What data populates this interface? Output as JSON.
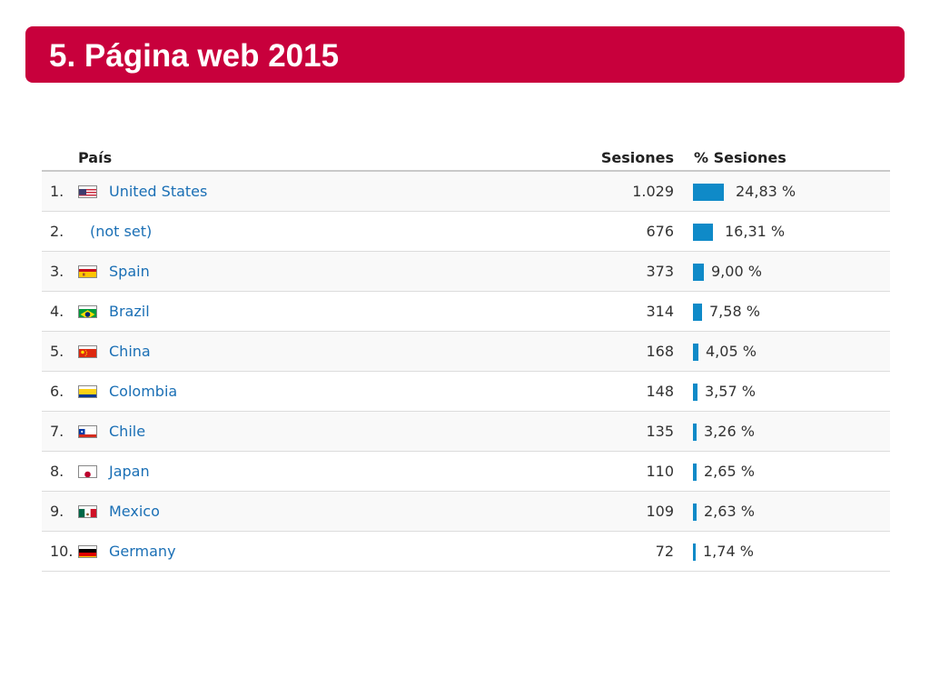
{
  "slide": {
    "title": "5. Página web 2015",
    "accent_color": "#c8003c",
    "bar_color": "#0f8ac8"
  },
  "table": {
    "headers": {
      "country": "País",
      "sessions": "Sesiones",
      "percent": "% Sesiones"
    },
    "rows": [
      {
        "rank": "1.",
        "country": "United States",
        "flag": "us-flag-icon",
        "sessions": "1.029",
        "percent": "24,83 %",
        "share": 24.83
      },
      {
        "rank": "2.",
        "country": "(not set)",
        "flag": "",
        "sessions": "676",
        "percent": "16,31 %",
        "share": 16.31
      },
      {
        "rank": "3.",
        "country": "Spain",
        "flag": "spain-flag-icon",
        "sessions": "373",
        "percent": "9,00 %",
        "share": 9.0
      },
      {
        "rank": "4.",
        "country": "Brazil",
        "flag": "brazil-flag-icon",
        "sessions": "314",
        "percent": "7,58 %",
        "share": 7.58
      },
      {
        "rank": "5.",
        "country": "China",
        "flag": "china-flag-icon",
        "sessions": "168",
        "percent": "4,05 %",
        "share": 4.05
      },
      {
        "rank": "6.",
        "country": "Colombia",
        "flag": "colombia-flag-icon",
        "sessions": "148",
        "percent": "3,57 %",
        "share": 3.57
      },
      {
        "rank": "7.",
        "country": "Chile",
        "flag": "chile-flag-icon",
        "sessions": "135",
        "percent": "3,26 %",
        "share": 3.26
      },
      {
        "rank": "8.",
        "country": "Japan",
        "flag": "japan-flag-icon",
        "sessions": "110",
        "percent": "2,65 %",
        "share": 2.65
      },
      {
        "rank": "9.",
        "country": "Mexico",
        "flag": "mexico-flag-icon",
        "sessions": "109",
        "percent": "2,63 %",
        "share": 2.63
      },
      {
        "rank": "10.",
        "country": "Germany",
        "flag": "germany-flag-icon",
        "sessions": "72",
        "percent": "1,74 %",
        "share": 1.74
      }
    ]
  }
}
